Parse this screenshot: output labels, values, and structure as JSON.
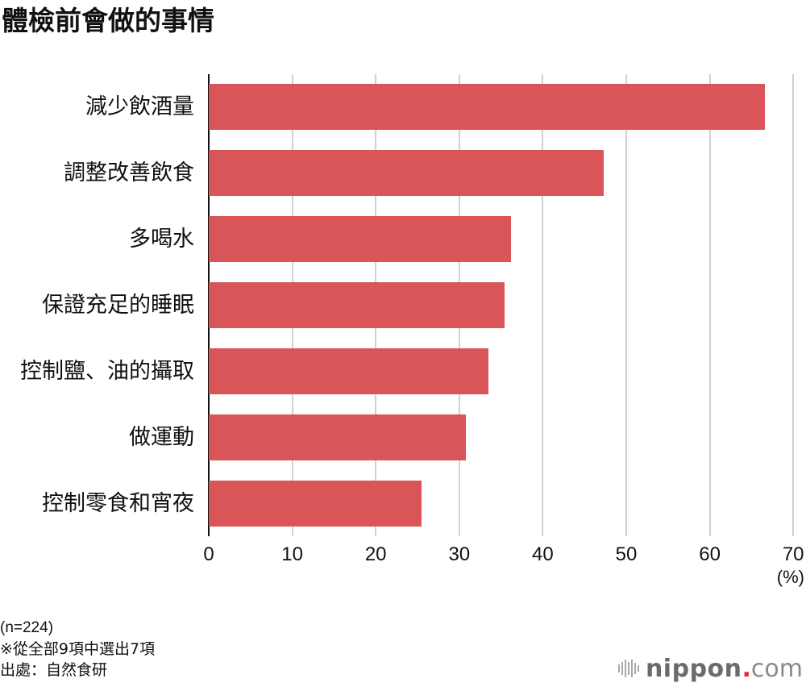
{
  "title": "體檢前會做的事情",
  "chart_data": {
    "type": "bar",
    "orientation": "horizontal",
    "title": "體檢前會做的事情",
    "categories": [
      "減少飲酒量",
      "調整改善飲食",
      "多喝水",
      "保證充足的睡眠",
      "控制鹽、油的攝取",
      "做運動",
      "控制零食和宵夜"
    ],
    "values": [
      66.6,
      47.3,
      36.2,
      35.4,
      33.5,
      30.8,
      25.5
    ],
    "xlabel": "(%)",
    "ylabel": "",
    "xlim": [
      0,
      70
    ],
    "xticks": [
      0,
      10,
      20,
      30,
      40,
      50,
      60,
      70
    ],
    "grid": true,
    "bar_color": "#d95557",
    "legend": null
  },
  "axis": {
    "ticks": [
      "0",
      "10",
      "20",
      "30",
      "40",
      "50",
      "60",
      "70"
    ],
    "unit": "(%)"
  },
  "notes": {
    "sample": "(n=224)",
    "selection": "※從全部9項中選出7項",
    "source": "出處：自然食研"
  },
  "logo": {
    "word": "nippon",
    "dot": ".",
    "tld": "com"
  },
  "colors": {
    "bar": "#d95557",
    "grid": "#d0d0d0",
    "axis": "#111111",
    "logo_dot": "#e8262c"
  }
}
